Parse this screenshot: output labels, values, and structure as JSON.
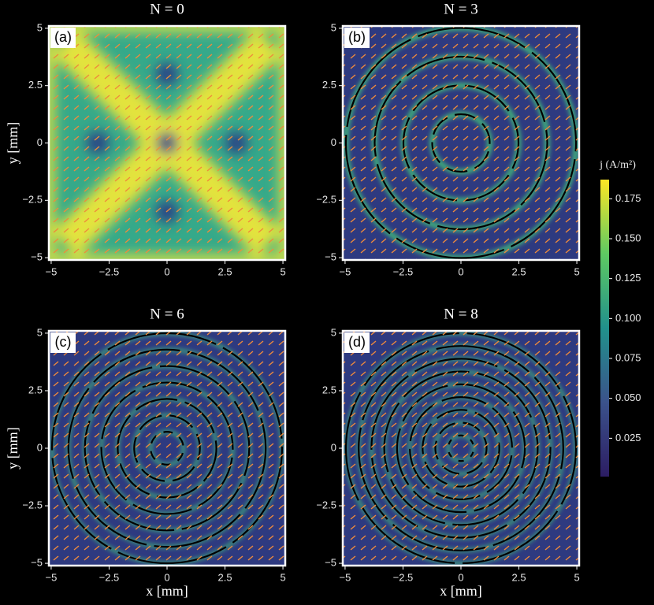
{
  "chart_data": [
    {
      "type": "heatmap",
      "title": "N = 0",
      "panel_label": "(a)",
      "y_label": "y [mm]",
      "xlim": [
        -5.1,
        5.1
      ],
      "ylim": [
        -5.1,
        5.1
      ],
      "xticks": [
        {
          "value": -5,
          "label": "−5"
        },
        {
          "value": -2.5,
          "label": "−2.5"
        },
        0,
        2.5,
        5
      ],
      "yticks": [
        {
          "value": -5,
          "label": "−5"
        },
        {
          "value": -2.5,
          "label": "−2.5"
        },
        0,
        2.5,
        5
      ]
    },
    {
      "type": "heatmap",
      "title": "N = 3",
      "panel_label": "(b)",
      "xlim": [
        -5.1,
        5.1
      ],
      "ylim": [
        -5.1,
        5.1
      ],
      "xticks": [
        {
          "value": -5,
          "label": "−5"
        },
        {
          "value": -2.5,
          "label": "−2.5"
        },
        0,
        2.5,
        5
      ],
      "yticks": [
        {
          "value": -5,
          "label": "−5"
        },
        {
          "value": -2.5,
          "label": "−2.5"
        },
        0,
        2.5,
        5
      ]
    },
    {
      "type": "heatmap",
      "title": "N = 6",
      "panel_label": "(c)",
      "x_label": "x [mm]",
      "y_label": "y [mm]",
      "xlim": [
        -5.1,
        5.1
      ],
      "ylim": [
        -5.1,
        5.1
      ],
      "xticks": [
        {
          "value": -5,
          "label": "−5"
        },
        {
          "value": -2.5,
          "label": "−2.5"
        },
        0,
        2.5,
        5
      ],
      "yticks": [
        {
          "value": -5,
          "label": "−5"
        },
        {
          "value": -2.5,
          "label": "−2.5"
        },
        0,
        2.5,
        5
      ]
    },
    {
      "type": "heatmap",
      "title": "N = 8",
      "panel_label": "(d)",
      "x_label": "x [mm]",
      "xlim": [
        -5.1,
        5.1
      ],
      "ylim": [
        -5.1,
        5.1
      ],
      "xticks": [
        {
          "value": -5,
          "label": "−5"
        },
        {
          "value": -2.5,
          "label": "−2.5"
        },
        0,
        2.5,
        5
      ],
      "yticks": [
        {
          "value": -5,
          "label": "−5"
        },
        {
          "value": -2.5,
          "label": "−2.5"
        },
        0,
        2.5,
        5
      ]
    }
  ],
  "colorbar": {
    "label": "j (A/m²)",
    "clim": [
      0.001,
      0.187
    ],
    "ticks": [
      0.025,
      {
        "value": 0.05,
        "label": "0.050"
      },
      0.075,
      {
        "value": 0.1,
        "label": "0.100"
      },
      0.125,
      {
        "value": 0.15,
        "label": "0.150"
      },
      0.175
    ]
  }
}
